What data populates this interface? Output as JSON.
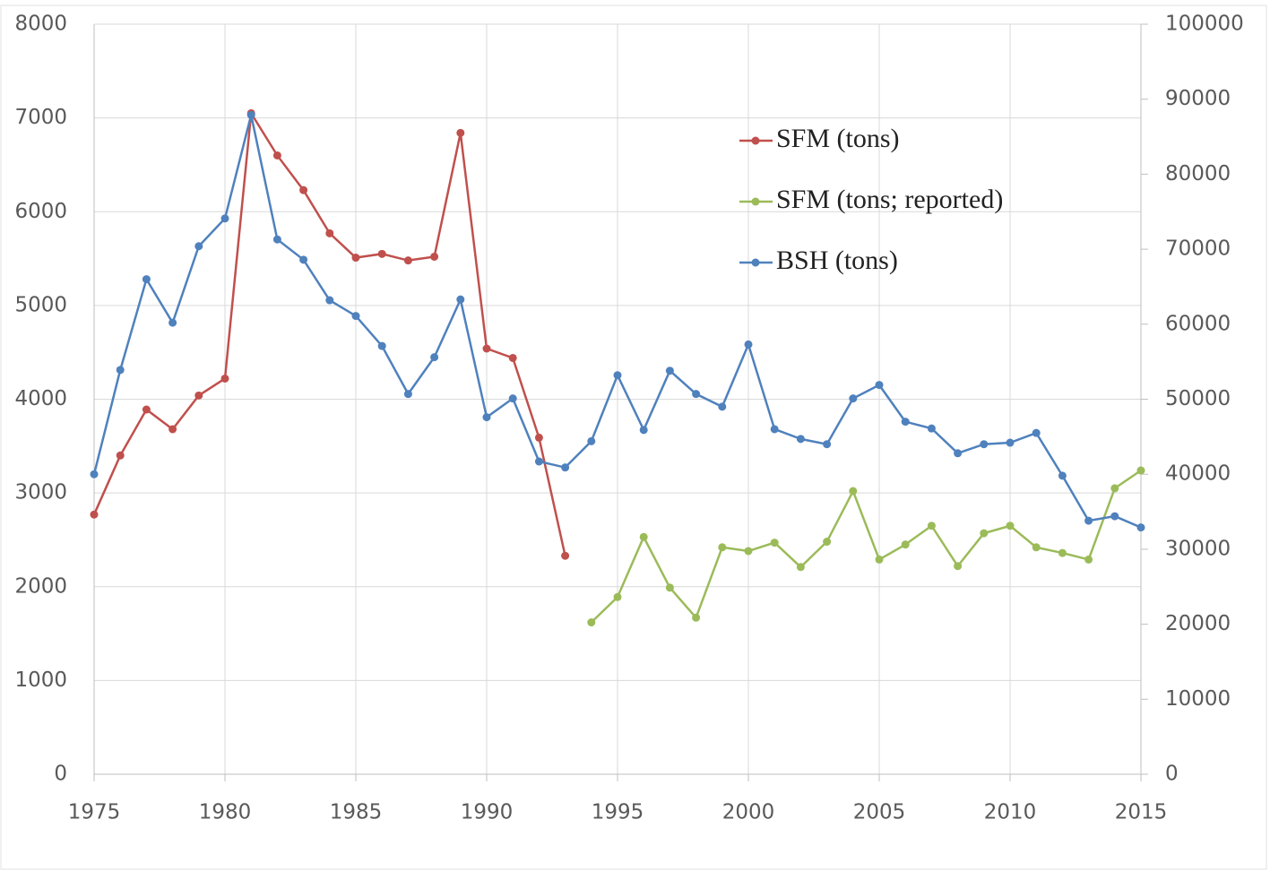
{
  "chart_data": {
    "type": "line",
    "x": [
      1975,
      1976,
      1977,
      1978,
      1979,
      1980,
      1981,
      1982,
      1983,
      1984,
      1985,
      1986,
      1987,
      1988,
      1989,
      1990,
      1991,
      1992,
      1993,
      1994,
      1995,
      1996,
      1997,
      1998,
      1999,
      2000,
      2001,
      2002,
      2003,
      2004,
      2005,
      2006,
      2007,
      2008,
      2009,
      2010,
      2011,
      2012,
      2013,
      2014,
      2015
    ],
    "series": [
      {
        "name": "SFM (tons)",
        "color": "#c0504d",
        "values": [
          2770,
          3400,
          3890,
          3680,
          4040,
          4220,
          7050,
          6600,
          6230,
          5770,
          5510,
          5550,
          5480,
          5520,
          6840,
          4540,
          4440,
          3590,
          2330,
          null,
          null,
          null,
          null,
          null,
          null,
          null,
          null,
          null,
          null,
          null,
          null,
          null,
          null,
          null,
          null,
          null,
          null,
          null,
          null,
          null,
          null
        ]
      },
      {
        "name": "SFM (tons; reported)",
        "color": "#9bbb59",
        "values": [
          null,
          null,
          null,
          null,
          null,
          null,
          null,
          null,
          null,
          null,
          null,
          null,
          null,
          null,
          null,
          null,
          null,
          null,
          null,
          1620,
          1890,
          2530,
          1990,
          1670,
          2420,
          2380,
          2470,
          2210,
          2480,
          3020,
          2290,
          2450,
          2650,
          2220,
          2570,
          2650,
          2420,
          2360,
          2290,
          3050,
          3240
        ]
      },
      {
        "name": "BSH (tons)",
        "color": "#4f81bd",
        "axis": "y2",
        "values": [
          40000,
          53900,
          66000,
          60200,
          70400,
          74100,
          87900,
          71300,
          68600,
          63200,
          61100,
          57100,
          50700,
          55600,
          63300,
          47600,
          50100,
          41700,
          40900,
          44400,
          53200,
          45900,
          53800,
          50700,
          49000,
          57300,
          46000,
          44700,
          44000,
          50100,
          51900,
          47000,
          46100,
          42800,
          44000,
          44200,
          45500,
          39800,
          33800,
          34400,
          32900
        ]
      }
    ],
    "xlim": [
      1975,
      2015
    ],
    "xticks": [
      1975,
      1980,
      1985,
      1990,
      1995,
      2000,
      2005,
      2010,
      2015
    ],
    "ylim": [
      0,
      8000
    ],
    "yticks": [
      0,
      1000,
      2000,
      3000,
      4000,
      5000,
      6000,
      7000,
      8000
    ],
    "y2lim": [
      0,
      100000
    ],
    "y2ticks": [
      0,
      10000,
      20000,
      30000,
      40000,
      50000,
      60000,
      70000,
      80000,
      90000,
      100000
    ],
    "grid": true,
    "legend": "top-right"
  }
}
